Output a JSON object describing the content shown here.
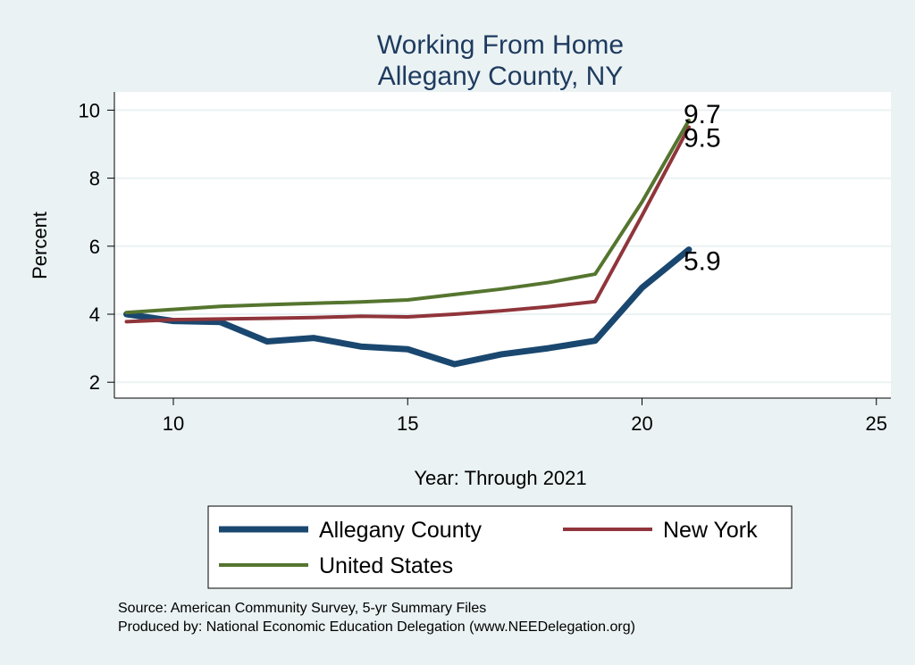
{
  "chart_data": {
    "type": "line",
    "title": "Working From Home",
    "subtitle": "Allegany County, NY",
    "xlabel": "Year: Through 2021",
    "ylabel": "Percent",
    "xlim": [
      8.7,
      25.3
    ],
    "ylim": [
      1.6,
      10.4
    ],
    "xticks": [
      10,
      15,
      20,
      25
    ],
    "yticks": [
      2,
      4,
      6,
      8,
      10
    ],
    "grid": true,
    "legend_position": "bottom",
    "x": [
      9,
      10,
      11,
      12,
      13,
      14,
      15,
      16,
      17,
      18,
      19,
      20,
      21
    ],
    "series": [
      {
        "name": "Allegany County",
        "color": "#1a476f",
        "width": 7,
        "values": [
          4.0,
          3.8,
          3.77,
          3.2,
          3.3,
          3.05,
          2.97,
          2.53,
          2.82,
          3.0,
          3.22,
          4.78,
          5.9
        ],
        "end_label": "5.9"
      },
      {
        "name": "New York",
        "color": "#90353b",
        "width": 4,
        "values": [
          3.78,
          3.84,
          3.86,
          3.88,
          3.9,
          3.94,
          3.92,
          4.0,
          4.1,
          4.22,
          4.37,
          6.9,
          9.5
        ],
        "end_label": "9.5"
      },
      {
        "name": "United States",
        "color": "#55752f",
        "width": 4,
        "values": [
          4.05,
          4.14,
          4.23,
          4.28,
          4.32,
          4.36,
          4.42,
          4.58,
          4.74,
          4.93,
          5.18,
          7.3,
          9.7
        ],
        "end_label": "9.7"
      }
    ]
  },
  "notes": [
    "Source: American Community Survey, 5-yr Summary Files",
    "Produced by: National Economic Education Delegation (www.NEEDelegation.org)"
  ]
}
